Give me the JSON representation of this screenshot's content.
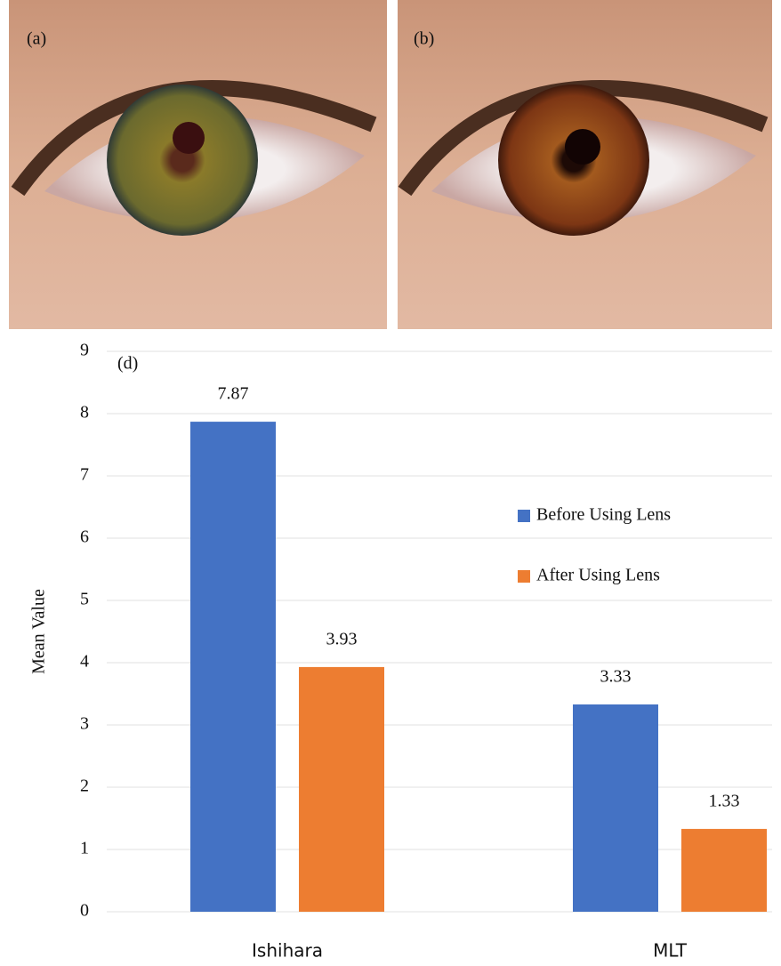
{
  "panels": {
    "a": "(a)",
    "b": "(b)"
  },
  "chart_data": {
    "type": "bar",
    "annotation": "(d)",
    "y_label": "Mean Value",
    "categories": [
      "Ishihara",
      "MLT"
    ],
    "series": [
      {
        "name": "Before Using Lens",
        "color": "#4472c4",
        "values": [
          7.87,
          3.33
        ]
      },
      {
        "name": "After Using Lens",
        "color": "#ed7d31",
        "values": [
          3.93,
          1.33
        ]
      }
    ],
    "ylim": [
      0,
      9
    ],
    "yticks": [
      0,
      1,
      2,
      3,
      4,
      5,
      6,
      7,
      8,
      9
    ],
    "grid": true
  }
}
